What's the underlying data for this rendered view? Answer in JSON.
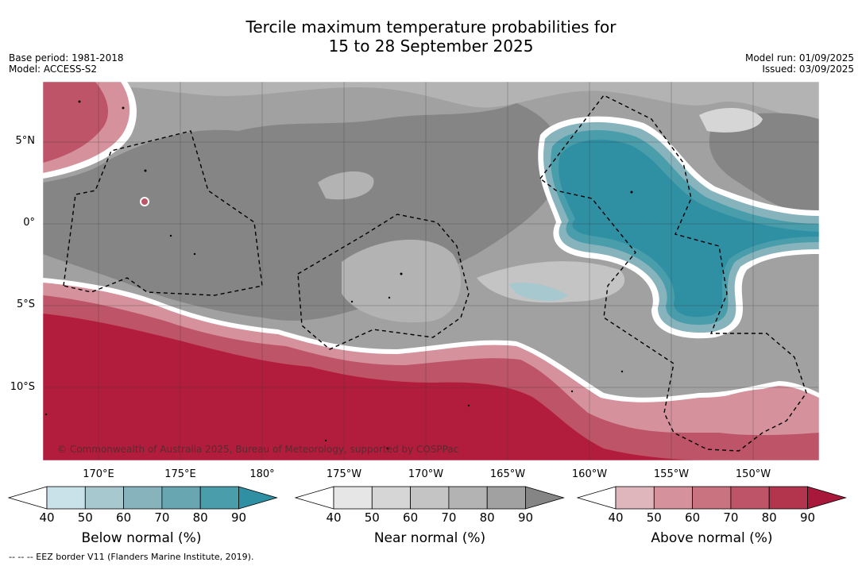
{
  "title_line1": "Tercile maximum temperature probabilities for",
  "title_line2": "15 to 28 September 2025",
  "meta_left": {
    "base_period": "Base period: 1981-2018",
    "model": "Model: ACCESS-S2"
  },
  "meta_right": {
    "model_run": "Model run: 01/09/2025",
    "issued": "Issued: 03/09/2025"
  },
  "lat_labels": [
    "5°N",
    "0°",
    "5°S",
    "10°S"
  ],
  "lon_labels": [
    "170°E",
    "175°E",
    "180°",
    "175°W",
    "170°W",
    "165°W",
    "160°W",
    "155°W",
    "150°W"
  ],
  "copyright": "© Commonwealth of Australia 2025, Bureau of Meteorology, supported by COSPPac",
  "colorbars": [
    {
      "title": "Below normal (%)",
      "ticks": [
        "40",
        "50",
        "60",
        "70",
        "80",
        "90"
      ],
      "colors": [
        "#c9e1e8",
        "#a7c8cf",
        "#87b3bd",
        "#68a6b2",
        "#4a9daa",
        "#2f8fa3"
      ]
    },
    {
      "title": "Near normal (%)",
      "ticks": [
        "40",
        "50",
        "60",
        "70",
        "80",
        "90"
      ],
      "colors": [
        "#e6e6e6",
        "#d6d6d6",
        "#c4c4c4",
        "#b3b3b3",
        "#a1a1a1",
        "#858585"
      ]
    },
    {
      "title": "Above normal (%)",
      "ticks": [
        "40",
        "50",
        "60",
        "70",
        "80",
        "90"
      ],
      "colors": [
        "#e0b6bd",
        "#d5929c",
        "#c97380",
        "#bd5467",
        "#b3344d",
        "#a8183a"
      ]
    }
  ],
  "footnote": "--  --  -- EEZ border V11 (Flanders Marine Institute, 2019).",
  "colors": {
    "near_dark": "#858585",
    "near_mid": "#a1a1a1",
    "near_light": "#c4c4c4",
    "below": "#2f8fa3",
    "above": "#b31d3d"
  }
}
